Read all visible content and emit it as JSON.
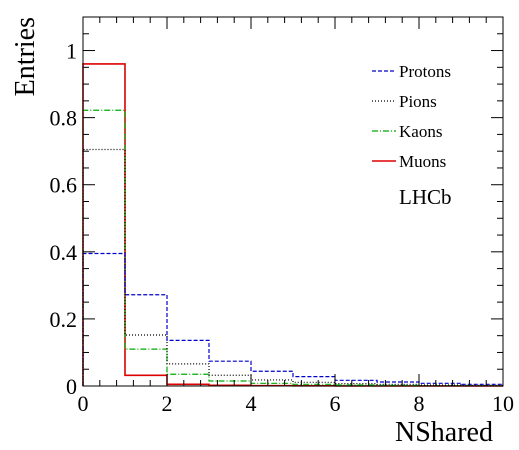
{
  "chart_data": {
    "type": "histogram",
    "xlabel": "NShared",
    "ylabel": "Entries",
    "xlim": [
      0,
      10
    ],
    "ylim": [
      0,
      1.1
    ],
    "xticks": [
      0,
      2,
      4,
      6,
      8,
      10
    ],
    "yticks": [
      0,
      0.2,
      0.4,
      0.6,
      0.8,
      1
    ],
    "ytick_labels": [
      "0",
      "0.2",
      "0.4",
      "0.6",
      "0.8",
      "1"
    ],
    "bin_edges": [
      0,
      1,
      2,
      3,
      4,
      5,
      6,
      7,
      8,
      9,
      10
    ],
    "legend_position": "top-right",
    "annotation": "LHCb",
    "series": [
      {
        "name": "Protons",
        "color": "#0000cc",
        "style": "dashed",
        "values": [
          0.395,
          0.272,
          0.136,
          0.074,
          0.044,
          0.028,
          0.017,
          0.012,
          0.008,
          0.005
        ]
      },
      {
        "name": "Pions",
        "color": "#000000",
        "style": "dotted",
        "values": [
          0.705,
          0.152,
          0.066,
          0.032,
          0.018,
          0.011,
          0.007,
          0.005,
          0.003,
          0.002
        ]
      },
      {
        "name": "Kaons",
        "color": "#00aa00",
        "style": "dashdot",
        "values": [
          0.822,
          0.11,
          0.035,
          0.015,
          0.008,
          0.005,
          0.003,
          0.002,
          0.001,
          0.001
        ]
      },
      {
        "name": "Muons",
        "color": "#dd0000",
        "style": "solid",
        "values": [
          0.96,
          0.032,
          0.005,
          0.002,
          0.001,
          0.0005,
          0.0003,
          0.0002,
          0.0001,
          0.0001
        ]
      }
    ]
  }
}
